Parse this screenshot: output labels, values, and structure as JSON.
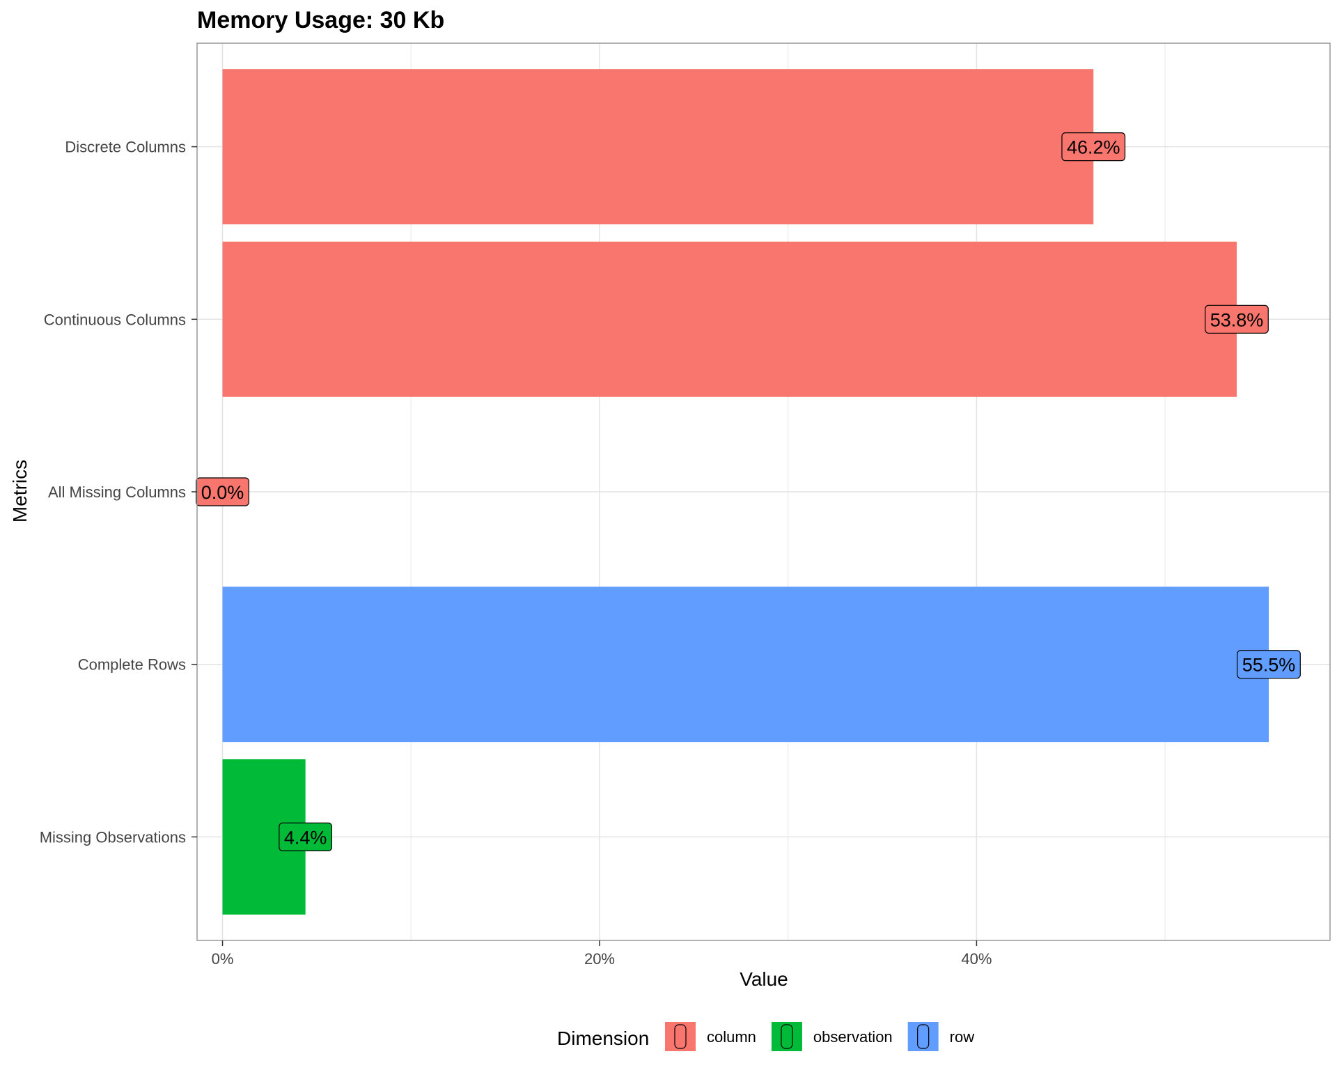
{
  "chart_data": {
    "type": "bar",
    "orientation": "horizontal",
    "title": "Memory Usage: 30 Kb",
    "xlabel": "Value",
    "ylabel": "Metrics",
    "xlim": [
      -0.0135,
      0.5875
    ],
    "x_ticks": [
      {
        "value": 0,
        "label": "0%"
      },
      {
        "value": 0.2,
        "label": "20%"
      },
      {
        "value": 0.4,
        "label": "40%"
      }
    ],
    "grid": true,
    "legend": {
      "title": "Dimension",
      "position": "bottom",
      "entries": [
        {
          "label": "column",
          "color": "#F8766D"
        },
        {
          "label": "observation",
          "color": "#00BA38"
        },
        {
          "label": "row",
          "color": "#619CFF"
        }
      ]
    },
    "categories": [
      "Discrete Columns",
      "Continuous Columns",
      "All Missing Columns",
      "Complete Rows",
      "Missing Observations"
    ],
    "bars": [
      {
        "category": "Discrete Columns",
        "value": 0.462,
        "label": "46.2%",
        "dimension": "column"
      },
      {
        "category": "Continuous Columns",
        "value": 0.538,
        "label": "53.8%",
        "dimension": "column"
      },
      {
        "category": "All Missing Columns",
        "value": 0.0,
        "label": "0.0%",
        "dimension": "column"
      },
      {
        "category": "Complete Rows",
        "value": 0.555,
        "label": "55.5%",
        "dimension": "row"
      },
      {
        "category": "Missing Observations",
        "value": 0.044,
        "label": "4.4%",
        "dimension": "observation"
      }
    ]
  }
}
